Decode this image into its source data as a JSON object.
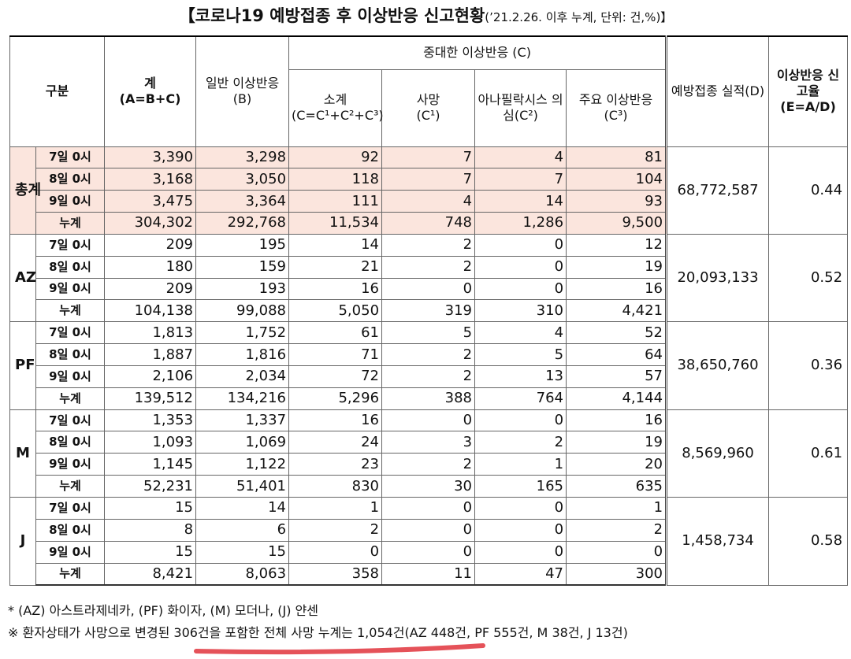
{
  "title": "【코로나19 예방접종 후 이상반응 신고현황",
  "subtitle": "(’21.2.26. 이후 누계, 단위: 건,%)】",
  "header": {
    "category": "구분",
    "total": "계",
    "total_formula": "(A=B+C)",
    "general": "일반 이상반응",
    "general_code": "(B)",
    "serious": "중대한 이상반응 (C)",
    "serious_cols": [
      {
        "label": "소계",
        "code": "(C=C¹+C²+C³)"
      },
      {
        "label": "사망",
        "code": "(C¹)"
      },
      {
        "label": "아나필락시스 의심",
        "code": "(C²)"
      },
      {
        "label": "주요 이상반응",
        "code": "(C³)"
      }
    ],
    "vaccinated": "예방접종 실적(D)",
    "rate": "이상반응 신고율",
    "rate_formula": "(E=A/D)"
  },
  "groups": [
    {
      "name": "총계",
      "vaccinated": "68,772,587",
      "rate": "0.44",
      "rows": [
        {
          "period": "7일 0시",
          "values": [
            "3,390",
            "3,298",
            "92",
            "7",
            "4",
            "81"
          ]
        },
        {
          "period": "8일 0시",
          "values": [
            "3,168",
            "3,050",
            "118",
            "7",
            "7",
            "104"
          ]
        },
        {
          "period": "9일 0시",
          "values": [
            "3,475",
            "3,364",
            "111",
            "4",
            "14",
            "93"
          ]
        },
        {
          "period": "누계",
          "values": [
            "304,302",
            "292,768",
            "11,534",
            "748",
            "1,286",
            "9,500"
          ]
        }
      ]
    },
    {
      "name": "AZ",
      "vaccinated": "20,093,133",
      "rate": "0.52",
      "rows": [
        {
          "period": "7일 0시",
          "values": [
            "209",
            "195",
            "14",
            "2",
            "0",
            "12"
          ]
        },
        {
          "period": "8일 0시",
          "values": [
            "180",
            "159",
            "21",
            "2",
            "0",
            "19"
          ]
        },
        {
          "period": "9일 0시",
          "values": [
            "209",
            "193",
            "16",
            "0",
            "0",
            "16"
          ]
        },
        {
          "period": "누계",
          "values": [
            "104,138",
            "99,088",
            "5,050",
            "319",
            "310",
            "4,421"
          ]
        }
      ]
    },
    {
      "name": "PF",
      "vaccinated": "38,650,760",
      "rate": "0.36",
      "rows": [
        {
          "period": "7일 0시",
          "values": [
            "1,813",
            "1,752",
            "61",
            "5",
            "4",
            "52"
          ]
        },
        {
          "period": "8일 0시",
          "values": [
            "1,887",
            "1,816",
            "71",
            "2",
            "5",
            "64"
          ]
        },
        {
          "period": "9일 0시",
          "values": [
            "2,106",
            "2,034",
            "72",
            "2",
            "13",
            "57"
          ]
        },
        {
          "period": "누계",
          "values": [
            "139,512",
            "134,216",
            "5,296",
            "388",
            "764",
            "4,144"
          ]
        }
      ]
    },
    {
      "name": "M",
      "vaccinated": "8,569,960",
      "rate": "0.61",
      "rows": [
        {
          "period": "7일 0시",
          "values": [
            "1,353",
            "1,337",
            "16",
            "0",
            "0",
            "16"
          ]
        },
        {
          "period": "8일 0시",
          "values": [
            "1,093",
            "1,069",
            "24",
            "3",
            "2",
            "19"
          ]
        },
        {
          "period": "9일 0시",
          "values": [
            "1,145",
            "1,122",
            "23",
            "2",
            "1",
            "20"
          ]
        },
        {
          "period": "누계",
          "values": [
            "52,231",
            "51,401",
            "830",
            "30",
            "165",
            "635"
          ]
        }
      ]
    },
    {
      "name": "J",
      "vaccinated": "1,458,734",
      "rate": "0.58",
      "rows": [
        {
          "period": "7일 0시",
          "values": [
            "15",
            "14",
            "1",
            "0",
            "0",
            "1"
          ]
        },
        {
          "period": "8일 0시",
          "values": [
            "8",
            "6",
            "2",
            "0",
            "0",
            "2"
          ]
        },
        {
          "period": "9일 0시",
          "values": [
            "15",
            "15",
            "0",
            "0",
            "0",
            "0"
          ]
        },
        {
          "period": "누계",
          "values": [
            "8,421",
            "8,063",
            "358",
            "11",
            "47",
            "300"
          ]
        }
      ]
    }
  ],
  "footnotes": [
    "* (AZ) 아스트라제네카, (PF) 화이자, (M) 모더나, (J) 얀센",
    "※ 환자상태가 사망으로 변경된 306건을 포함한 전체 사망 누계는 1,054건(AZ 448건, PF 555건, M 38건, J 13건)"
  ]
}
